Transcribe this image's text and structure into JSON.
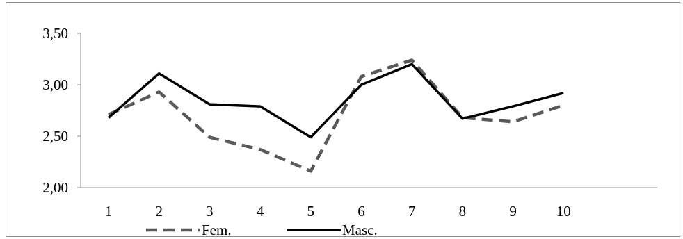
{
  "chart_data": {
    "type": "line",
    "title": "",
    "xlabel": "",
    "ylabel": "",
    "x": [
      "1",
      "2",
      "3",
      "4",
      "5",
      "6",
      "7",
      "8",
      "9",
      "10"
    ],
    "ylim": [
      2.0,
      3.5
    ],
    "yticks": [
      "2,00",
      "2,50",
      "3,00",
      "3,50"
    ],
    "ytick_values": [
      2.0,
      2.5,
      3.0,
      3.5
    ],
    "grid": false,
    "legend_position": "bottom",
    "series": [
      {
        "name": "Fem.",
        "style": "dashed",
        "color": "#595959",
        "values": [
          2.71,
          2.93,
          2.49,
          2.37,
          2.16,
          3.08,
          3.24,
          2.68,
          2.64,
          2.8
        ]
      },
      {
        "name": "Masc.",
        "style": "solid",
        "color": "#000000",
        "values": [
          2.68,
          3.11,
          2.81,
          2.79,
          2.49,
          3.0,
          3.2,
          2.67,
          2.79,
          2.92
        ]
      }
    ]
  }
}
